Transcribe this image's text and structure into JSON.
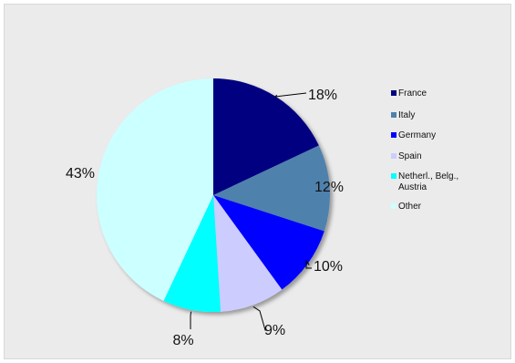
{
  "chart_data": {
    "type": "pie",
    "title": "",
    "slices": [
      {
        "label": "France",
        "value": 18,
        "display": "18%",
        "color": "#000080"
      },
      {
        "label": "Italy",
        "value": 12,
        "display": "12%",
        "color": "#4f81ad"
      },
      {
        "label": "Germany",
        "value": 10,
        "display": "10%",
        "color": "#0000ff"
      },
      {
        "label": "Spain",
        "value": 9,
        "display": "9%",
        "color": "#ccccff"
      },
      {
        "label": "Netherl., Belg., Austria",
        "value": 8,
        "display": "8%",
        "color": "#00ffff"
      },
      {
        "label": "Other",
        "value": 43,
        "display": "43%",
        "color": "#ccffff"
      }
    ],
    "start": "12 o'clock",
    "direction": "clockwise",
    "legend_position": "right",
    "legend": {
      "entries": [
        {
          "lines": [
            "France"
          ]
        },
        {
          "lines": [
            "Italy"
          ]
        },
        {
          "lines": [
            "Germany"
          ]
        },
        {
          "lines": [
            "Spain"
          ]
        },
        {
          "lines": [
            "Netherl., Belg.,",
            "Austria"
          ]
        },
        {
          "lines": [
            "Other"
          ]
        }
      ]
    }
  }
}
